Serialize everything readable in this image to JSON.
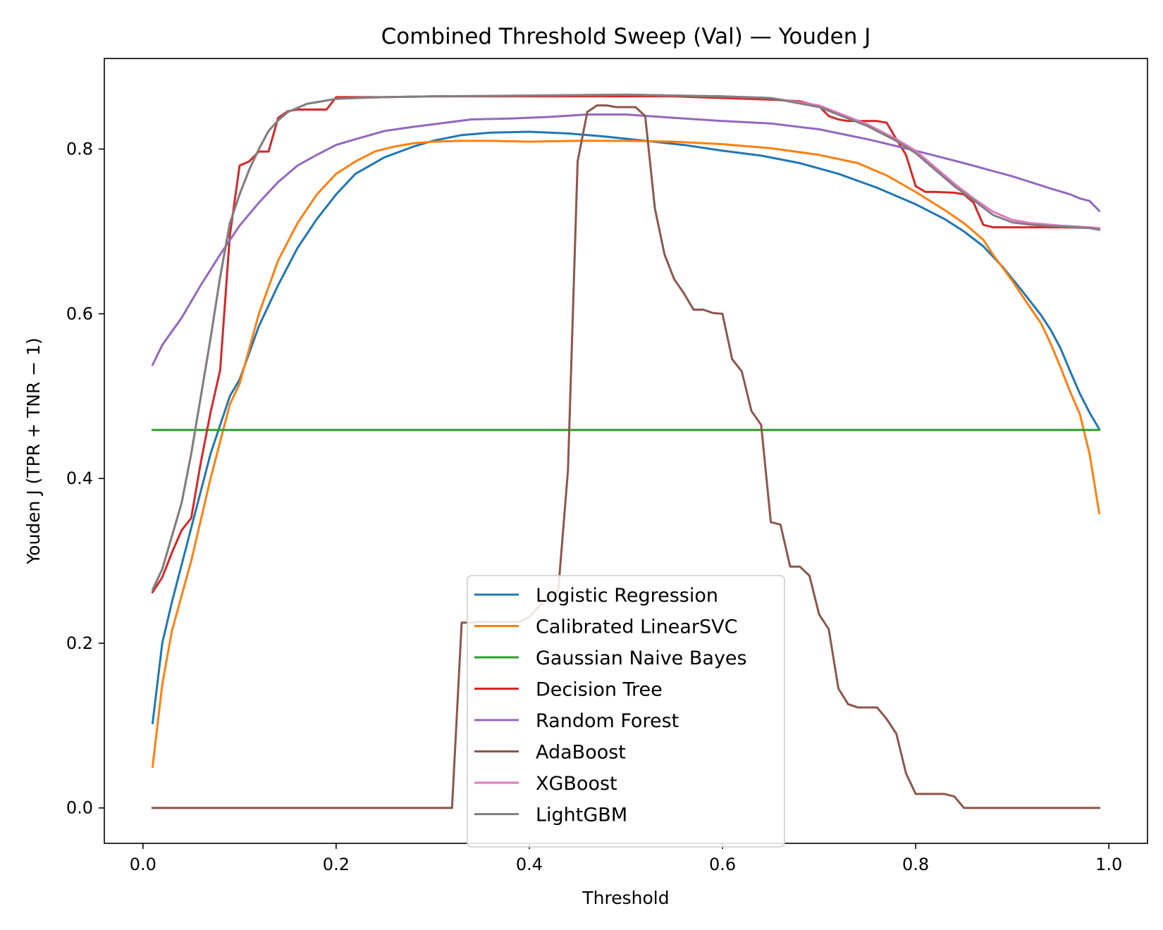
{
  "chart_data": {
    "type": "line",
    "title": "Combined Threshold Sweep (Val) — Youden J",
    "xlabel": "Threshold",
    "ylabel": "Youden J (TPR + TNR − 1)",
    "xlim": [
      -0.04,
      1.04
    ],
    "ylim": [
      -0.043,
      0.91
    ],
    "xticks": [
      0.0,
      0.2,
      0.4,
      0.6,
      0.8,
      1.0
    ],
    "xtick_labels": [
      "0.0",
      "0.2",
      "0.4",
      "0.6",
      "0.8",
      "1.0"
    ],
    "yticks": [
      0.0,
      0.2,
      0.4,
      0.6,
      0.8
    ],
    "ytick_labels": [
      "0.0",
      "0.2",
      "0.4",
      "0.6",
      "0.8"
    ],
    "grid": false,
    "legend_position": "lower center",
    "series": [
      {
        "name": "Logistic Regression",
        "color": "#1f77b4",
        "x": [
          0.01,
          0.02,
          0.03,
          0.05,
          0.07,
          0.09,
          0.1,
          0.12,
          0.14,
          0.16,
          0.18,
          0.2,
          0.22,
          0.25,
          0.28,
          0.3,
          0.33,
          0.36,
          0.4,
          0.44,
          0.48,
          0.52,
          0.56,
          0.6,
          0.64,
          0.68,
          0.72,
          0.76,
          0.8,
          0.83,
          0.85,
          0.87,
          0.89,
          0.91,
          0.93,
          0.94,
          0.95,
          0.96,
          0.97,
          0.98,
          0.99
        ],
        "y": [
          0.103,
          0.2,
          0.25,
          0.34,
          0.43,
          0.5,
          0.52,
          0.585,
          0.635,
          0.68,
          0.715,
          0.745,
          0.77,
          0.79,
          0.803,
          0.81,
          0.817,
          0.82,
          0.821,
          0.819,
          0.815,
          0.81,
          0.805,
          0.798,
          0.792,
          0.783,
          0.77,
          0.753,
          0.733,
          0.715,
          0.7,
          0.682,
          0.657,
          0.628,
          0.598,
          0.58,
          0.558,
          0.53,
          0.503,
          0.48,
          0.46
        ]
      },
      {
        "name": "Calibrated LinearSVC",
        "color": "#ff7f0e",
        "x": [
          0.01,
          0.02,
          0.03,
          0.05,
          0.07,
          0.09,
          0.1,
          0.12,
          0.14,
          0.16,
          0.18,
          0.2,
          0.22,
          0.24,
          0.26,
          0.28,
          0.3,
          0.33,
          0.36,
          0.4,
          0.45,
          0.5,
          0.55,
          0.6,
          0.65,
          0.7,
          0.74,
          0.77,
          0.8,
          0.83,
          0.85,
          0.87,
          0.88,
          0.9,
          0.92,
          0.93,
          0.94,
          0.95,
          0.96,
          0.97,
          0.98,
          0.99
        ],
        "y": [
          0.05,
          0.15,
          0.215,
          0.3,
          0.4,
          0.49,
          0.515,
          0.6,
          0.665,
          0.71,
          0.745,
          0.77,
          0.785,
          0.797,
          0.803,
          0.807,
          0.809,
          0.81,
          0.81,
          0.809,
          0.81,
          0.81,
          0.809,
          0.806,
          0.801,
          0.793,
          0.783,
          0.768,
          0.748,
          0.726,
          0.71,
          0.69,
          0.672,
          0.64,
          0.605,
          0.588,
          0.563,
          0.535,
          0.505,
          0.478,
          0.43,
          0.358
        ]
      },
      {
        "name": "Gaussian Naive Bayes",
        "color": "#2ca02c",
        "x": [
          0.01,
          0.99
        ],
        "y": [
          0.459,
          0.459
        ]
      },
      {
        "name": "Decision Tree",
        "color": "#d62728",
        "x": [
          0.01,
          0.02,
          0.03,
          0.04,
          0.05,
          0.06,
          0.07,
          0.08,
          0.09,
          0.1,
          0.11,
          0.12,
          0.13,
          0.14,
          0.15,
          0.16,
          0.17,
          0.18,
          0.19,
          0.2,
          0.25,
          0.3,
          0.4,
          0.5,
          0.55,
          0.6,
          0.65,
          0.68,
          0.7,
          0.71,
          0.72,
          0.73,
          0.74,
          0.76,
          0.77,
          0.78,
          0.79,
          0.8,
          0.81,
          0.82,
          0.84,
          0.85,
          0.86,
          0.87,
          0.88,
          0.9,
          0.95,
          0.99
        ],
        "y": [
          0.262,
          0.28,
          0.31,
          0.337,
          0.352,
          0.42,
          0.48,
          0.532,
          0.695,
          0.78,
          0.785,
          0.797,
          0.797,
          0.838,
          0.846,
          0.848,
          0.848,
          0.848,
          0.848,
          0.863,
          0.863,
          0.864,
          0.864,
          0.864,
          0.864,
          0.862,
          0.86,
          0.858,
          0.852,
          0.84,
          0.836,
          0.834,
          0.834,
          0.834,
          0.832,
          0.812,
          0.793,
          0.755,
          0.748,
          0.748,
          0.747,
          0.745,
          0.735,
          0.708,
          0.705,
          0.705,
          0.705,
          0.704
        ]
      },
      {
        "name": "Random Forest",
        "color": "#9467bd",
        "x": [
          0.01,
          0.02,
          0.04,
          0.06,
          0.08,
          0.1,
          0.12,
          0.14,
          0.16,
          0.18,
          0.2,
          0.22,
          0.25,
          0.28,
          0.3,
          0.34,
          0.38,
          0.42,
          0.46,
          0.5,
          0.55,
          0.6,
          0.65,
          0.7,
          0.75,
          0.8,
          0.85,
          0.9,
          0.94,
          0.96,
          0.97,
          0.98,
          0.99
        ],
        "y": [
          0.538,
          0.562,
          0.595,
          0.635,
          0.672,
          0.707,
          0.735,
          0.76,
          0.78,
          0.793,
          0.805,
          0.812,
          0.822,
          0.827,
          0.83,
          0.836,
          0.837,
          0.839,
          0.842,
          0.842,
          0.838,
          0.834,
          0.831,
          0.824,
          0.812,
          0.798,
          0.783,
          0.767,
          0.752,
          0.745,
          0.74,
          0.737,
          0.725
        ]
      },
      {
        "name": "AdaBoost",
        "color": "#8c564b",
        "x": [
          0.01,
          0.32,
          0.33,
          0.34,
          0.35,
          0.36,
          0.37,
          0.38,
          0.39,
          0.4,
          0.41,
          0.42,
          0.43,
          0.44,
          0.45,
          0.46,
          0.47,
          0.48,
          0.49,
          0.5,
          0.51,
          0.52,
          0.53,
          0.54,
          0.55,
          0.56,
          0.57,
          0.58,
          0.59,
          0.6,
          0.61,
          0.62,
          0.63,
          0.64,
          0.65,
          0.66,
          0.67,
          0.68,
          0.69,
          0.7,
          0.71,
          0.72,
          0.73,
          0.74,
          0.75,
          0.76,
          0.77,
          0.78,
          0.79,
          0.8,
          0.81,
          0.82,
          0.83,
          0.84,
          0.85,
          0.99
        ],
        "y": [
          0.0,
          0.0,
          0.225,
          0.225,
          0.226,
          0.226,
          0.226,
          0.226,
          0.226,
          0.232,
          0.245,
          0.255,
          0.265,
          0.41,
          0.785,
          0.845,
          0.853,
          0.853,
          0.851,
          0.851,
          0.851,
          0.84,
          0.728,
          0.672,
          0.642,
          0.625,
          0.605,
          0.605,
          0.601,
          0.6,
          0.545,
          0.53,
          0.482,
          0.465,
          0.347,
          0.344,
          0.293,
          0.293,
          0.282,
          0.235,
          0.217,
          0.145,
          0.126,
          0.122,
          0.122,
          0.122,
          0.108,
          0.09,
          0.042,
          0.017,
          0.017,
          0.017,
          0.017,
          0.014,
          0.0,
          0.0
        ]
      },
      {
        "name": "XGBoost",
        "color": "#e377c2",
        "x": [
          0.01,
          0.02,
          0.03,
          0.04,
          0.05,
          0.06,
          0.07,
          0.08,
          0.09,
          0.1,
          0.11,
          0.12,
          0.13,
          0.14,
          0.15,
          0.16,
          0.17,
          0.18,
          0.2,
          0.22,
          0.25,
          0.3,
          0.4,
          0.5,
          0.6,
          0.65,
          0.7,
          0.75,
          0.78,
          0.8,
          0.82,
          0.84,
          0.86,
          0.88,
          0.9,
          0.92,
          0.95,
          0.98,
          0.99
        ],
        "y": [
          0.265,
          0.29,
          0.33,
          0.37,
          0.43,
          0.5,
          0.57,
          0.645,
          0.71,
          0.745,
          0.775,
          0.8,
          0.822,
          0.835,
          0.845,
          0.85,
          0.855,
          0.857,
          0.861,
          0.862,
          0.863,
          0.864,
          0.865,
          0.866,
          0.864,
          0.862,
          0.853,
          0.83,
          0.812,
          0.798,
          0.778,
          0.758,
          0.74,
          0.724,
          0.714,
          0.71,
          0.707,
          0.705,
          0.704
        ]
      },
      {
        "name": "LightGBM",
        "color": "#7f7f7f",
        "x": [
          0.01,
          0.02,
          0.03,
          0.04,
          0.05,
          0.06,
          0.07,
          0.08,
          0.09,
          0.1,
          0.11,
          0.12,
          0.13,
          0.14,
          0.15,
          0.16,
          0.17,
          0.18,
          0.2,
          0.22,
          0.25,
          0.3,
          0.4,
          0.5,
          0.6,
          0.65,
          0.7,
          0.75,
          0.78,
          0.8,
          0.82,
          0.84,
          0.86,
          0.88,
          0.9,
          0.92,
          0.95,
          0.98,
          0.99
        ],
        "y": [
          0.265,
          0.29,
          0.33,
          0.37,
          0.43,
          0.5,
          0.57,
          0.645,
          0.71,
          0.745,
          0.775,
          0.8,
          0.822,
          0.835,
          0.845,
          0.85,
          0.855,
          0.857,
          0.861,
          0.862,
          0.863,
          0.864,
          0.865,
          0.866,
          0.864,
          0.862,
          0.851,
          0.828,
          0.81,
          0.795,
          0.775,
          0.755,
          0.738,
          0.72,
          0.711,
          0.708,
          0.706,
          0.704,
          0.702
        ]
      }
    ]
  }
}
